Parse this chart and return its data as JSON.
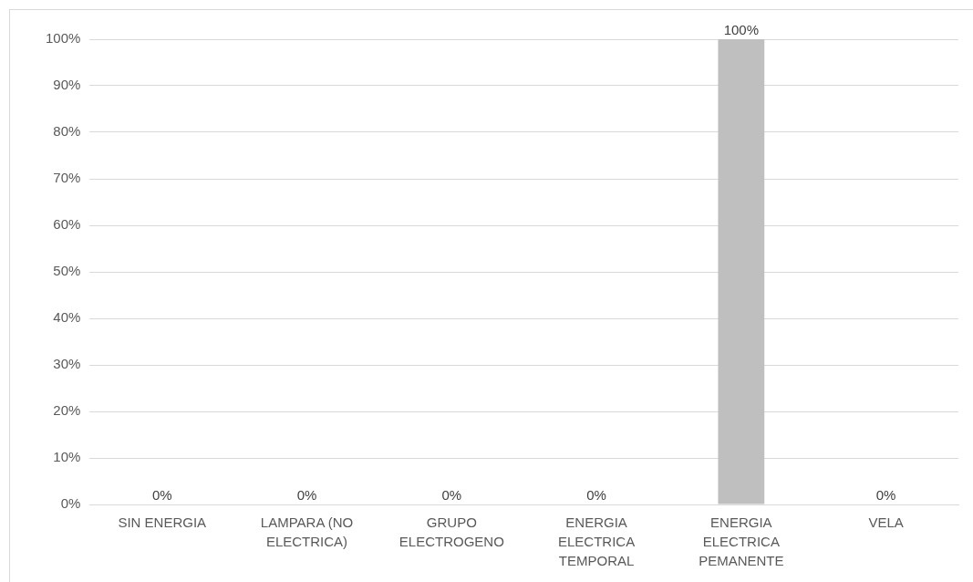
{
  "chart_data": {
    "type": "bar",
    "categories": [
      "SIN ENERGIA",
      "LAMPARA (NO ELECTRICA)",
      "GRUPO ELECTROGENO",
      "ENERGIA ELECTRICA TEMPORAL",
      "ENERGIA ELECTRICA PEMANENTE",
      "VELA"
    ],
    "values": [
      0,
      0,
      0,
      0,
      100,
      0
    ],
    "value_labels": [
      "0%",
      "0%",
      "0%",
      "0%",
      "100%",
      "0%"
    ],
    "color": "#bfbfbf",
    "ylim": [
      0,
      100
    ],
    "yticks": [
      {
        "value": 0,
        "label": "0%"
      },
      {
        "value": 10,
        "label": "10%"
      },
      {
        "value": 20,
        "label": "20%"
      },
      {
        "value": 30,
        "label": "30%"
      },
      {
        "value": 40,
        "label": "40%"
      },
      {
        "value": 50,
        "label": "50%"
      },
      {
        "value": 60,
        "label": "60%"
      },
      {
        "value": 70,
        "label": "70%"
      },
      {
        "value": 80,
        "label": "80%"
      },
      {
        "value": 90,
        "label": "90%"
      },
      {
        "value": 100,
        "label": "100%"
      }
    ],
    "grid": "y",
    "legend": false
  }
}
